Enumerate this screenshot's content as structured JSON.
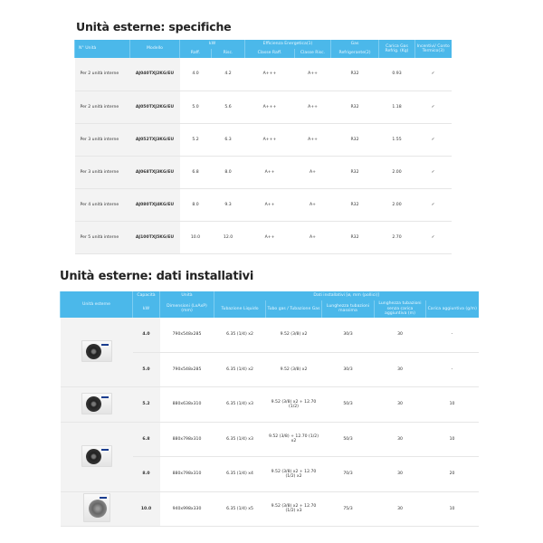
{
  "specs": {
    "title": "Unità esterne: specifiche",
    "headers": {
      "unit": "N° Unità",
      "model": "Modello",
      "kw": "kW",
      "kw_cool": "Raff.",
      "kw_heat": "Risc.",
      "eff": "Efficienza Energetica(1)",
      "eff_cool": "Classe Raff.",
      "eff_heat": "Classe Risc.",
      "gas": "Gas",
      "gas_sub": "Refrigerante(2)",
      "charge": "Carica Gas Refrig. (Kg)",
      "incent": "Incentivi/ Conto Termico(3)"
    },
    "rows": [
      [
        "Per 2 unità interne",
        "AJ040TXJ2KG/EU",
        "4.0",
        "4.2",
        "A+++",
        "A++",
        "R32",
        "0.93",
        "✓"
      ],
      [
        "Per 2 unità interne",
        "AJ050TXJ2KG/EU",
        "5.0",
        "5.6",
        "A+++",
        "A++",
        "R32",
        "1.18",
        "✓"
      ],
      [
        "Per 3 unità interne",
        "AJ052TXJ3KG/EU",
        "5.2",
        "6.3",
        "A+++",
        "A++",
        "R32",
        "1.55",
        "✓"
      ],
      [
        "Per 3 unità interne",
        "AJ068TXJ3KG/EU",
        "6.8",
        "8.0",
        "A++",
        "A+",
        "R32",
        "2.00",
        "✓"
      ],
      [
        "Per 4 unità interne",
        "AJ080TXJ4KG/EU",
        "8.0",
        "9.3",
        "A++",
        "A+",
        "R32",
        "2.00",
        "✓"
      ],
      [
        "Per 5 unità interne",
        "AJ100TXJ5KG/EU",
        "10.0",
        "12.0",
        "A++",
        "A+",
        "R32",
        "2.70",
        "✓"
      ]
    ]
  },
  "install": {
    "title": "Unità esterne: dati installativi",
    "headers": {
      "unit": "Unità esterne",
      "cap": "Capacità",
      "cap_sub": "kW",
      "size": "Unità",
      "size_sub": "Dimensioni (LxAxP) (mm)",
      "data": "Dati installativi [ø, mm (pollici)]",
      "liquid": "Tubazione Liquido",
      "gas": "Tubo gas / Tubazione Gas",
      "maxlen": "Lunghezza tubazioni massima",
      "nocharge": "Lunghezza tubazioni senza carica aggiuntiva (m)",
      "addcharge": "Carica aggiuntiva (g/m)"
    },
    "rows": [
      [
        "4.0",
        "790x548x285",
        "6.35 (1/4) x2",
        "9.52 (3/8) x2",
        "30/3",
        "30",
        "-"
      ],
      [
        "5.0",
        "790x548x285",
        "6.35 (1/4) x2",
        "9.52 (3/8) x2",
        "30/3",
        "30",
        "-"
      ],
      [
        "5.2",
        "880x638x310",
        "6.35 (1/4) x3",
        "9.52 (3/8) x2 + 12.70 (1/2)",
        "50/3",
        "30",
        "10"
      ],
      [
        "6.8",
        "880x798x310",
        "6.35 (1/4) x3",
        "9.52 (3/8) + 12.70 (1/2) x2",
        "50/3",
        "30",
        "10"
      ],
      [
        "8.0",
        "880x798x310",
        "6.35 (1/4) x4",
        "9.52 (3/8) x2 + 12.70 (1/2) x2",
        "70/3",
        "30",
        "20"
      ],
      [
        "10.0",
        "940x998x330",
        "6.35 (1/4) x5",
        "9.52 (3/8) x2 + 12.70 (1/2) x3",
        "75/3",
        "30",
        "10"
      ]
    ],
    "images": [
      {
        "rowspan": 2,
        "type": "outdoor-unit-fan-icon"
      },
      {
        "rowspan": 1,
        "type": "outdoor-unit-fan-icon"
      },
      {
        "rowspan": 2,
        "type": "outdoor-unit-fan-icon"
      },
      {
        "rowspan": 1,
        "type": "outdoor-unit-large-fan-icon"
      }
    ]
  },
  "colors": {
    "header": "#4bb8ea",
    "first_col": "#f3f3f3"
  }
}
